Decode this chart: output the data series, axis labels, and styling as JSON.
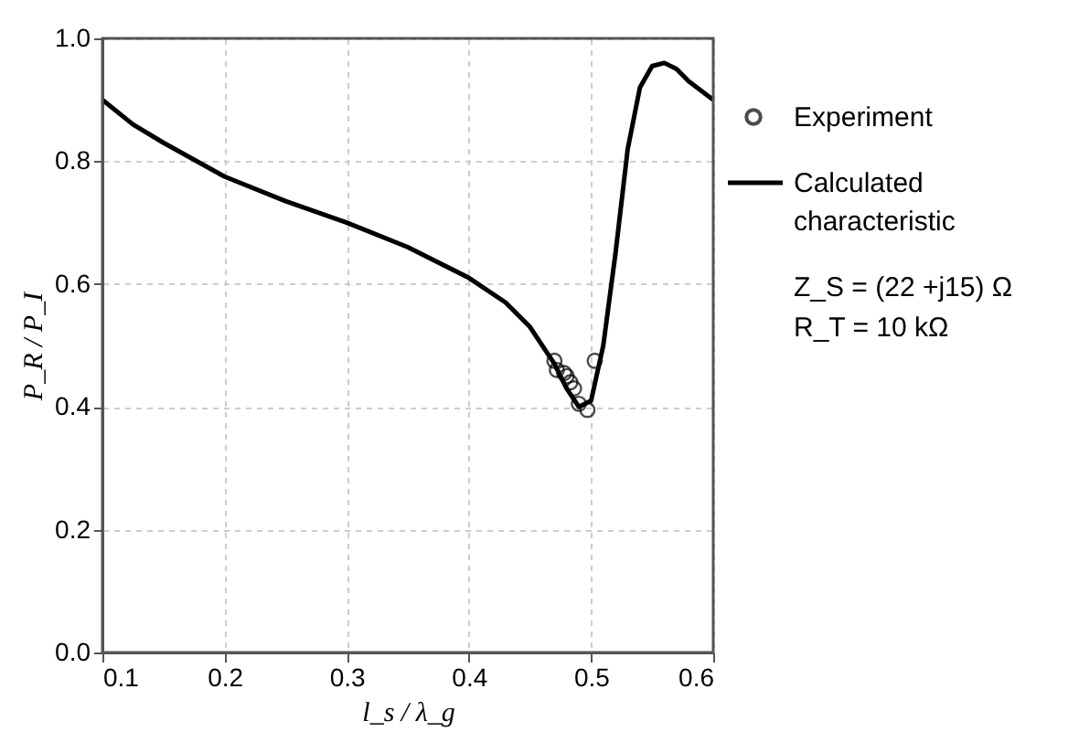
{
  "chart_data": {
    "type": "line",
    "xlabel": "l_s / λ_g",
    "ylabel": "P_R / P_I",
    "xlim": [
      0.1,
      0.6
    ],
    "xticks": [
      0.1,
      0.2,
      0.3,
      0.4,
      0.5,
      0.6
    ],
    "ylim": [
      0.0,
      1.0
    ],
    "yticks": [
      {
        "value": 0,
        "label": "0.0"
      },
      0.2,
      0.4,
      0.6,
      0.8,
      {
        "value": 1,
        "label": "1.0"
      }
    ],
    "grid": true,
    "legend": "right",
    "series": [
      {
        "name": "Experiment",
        "type": "scatter",
        "marker": "circle",
        "color": "#000000",
        "x": [
          0.47,
          0.472,
          0.478,
          0.48,
          0.483,
          0.486,
          0.49,
          0.497,
          0.503
        ],
        "values": [
          0.475,
          0.46,
          0.455,
          0.45,
          0.44,
          0.43,
          0.405,
          0.395,
          0.475
        ]
      },
      {
        "name": "Calculated characteristic",
        "color": "#000000",
        "x": [
          0.1,
          0.125,
          0.15,
          0.2,
          0.25,
          0.3,
          0.35,
          0.4,
          0.43,
          0.45,
          0.47,
          0.48,
          0.49,
          0.5,
          0.51,
          0.52,
          0.53,
          0.54,
          0.55,
          0.56,
          0.57,
          0.58,
          0.6
        ],
        "values": [
          0.9,
          0.86,
          0.83,
          0.775,
          0.735,
          0.7,
          0.66,
          0.61,
          0.57,
          0.53,
          0.47,
          0.43,
          0.4,
          0.41,
          0.5,
          0.65,
          0.82,
          0.92,
          0.955,
          0.96,
          0.95,
          0.93,
          0.9
        ]
      }
    ],
    "annotations": [
      "Z_S = (22 +j15) Ω",
      "R_T = 10 kΩ"
    ]
  }
}
